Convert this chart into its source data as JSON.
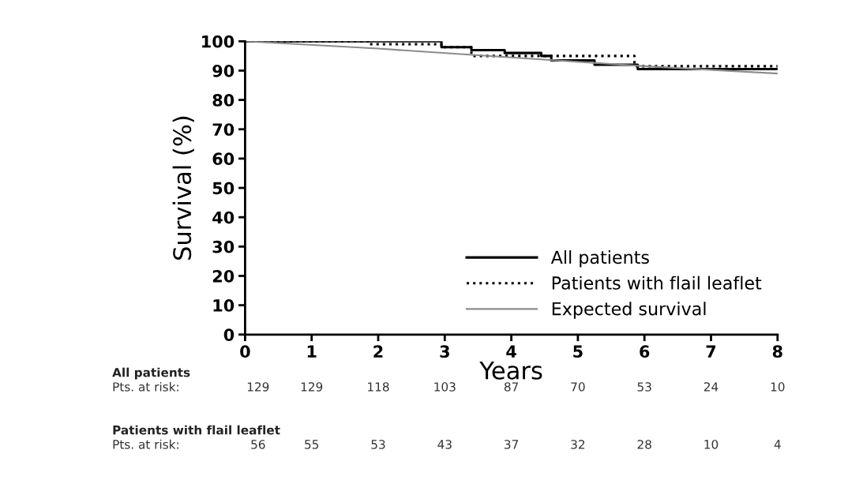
{
  "chart_data": {
    "type": "step",
    "xlabel": "Years",
    "ylabel": "Survival (%)",
    "xlim": [
      0,
      8
    ],
    "xticks": [
      0,
      1,
      2,
      3,
      4,
      5,
      6,
      7,
      8
    ],
    "ylim": [
      0,
      100
    ],
    "yticks": [
      0,
      10,
      20,
      30,
      40,
      50,
      60,
      70,
      80,
      90,
      100
    ],
    "grid": false,
    "legend": "bottom right",
    "series": [
      {
        "name": "All patients",
        "color": "#000000",
        "line_style": "solid",
        "x": [
          0,
          2.95,
          3.4,
          3.9,
          4.45,
          4.6,
          5.25,
          5.9,
          8
        ],
        "values": [
          100,
          98,
          97,
          96,
          95,
          93.5,
          92,
          90.5,
          90.5
        ]
      },
      {
        "name": "Patients with flail leaflet",
        "color": "#000000",
        "line_style": "dotted",
        "x": [
          0,
          1.87,
          2.95,
          3.4,
          5.85,
          8
        ],
        "values": [
          100,
          99,
          98,
          95,
          91.5,
          91.5
        ]
      },
      {
        "name": "Expected survival",
        "type": "line",
        "color": "#8c8c8c",
        "line_style": "solid",
        "x": [
          0,
          2,
          4,
          6,
          8
        ],
        "values": [
          100,
          97.5,
          94.5,
          91.5,
          89
        ]
      }
    ],
    "annotations": [
      "All patients",
      "Pts. at risk:",
      "129",
      "129",
      "118",
      "103",
      "87",
      "70",
      "53",
      "24",
      "10",
      "Patients with flail leaflet",
      "Pts. at risk:",
      "56",
      "55",
      "53",
      "43",
      "37",
      "32",
      "28",
      "10",
      "4"
    ]
  }
}
